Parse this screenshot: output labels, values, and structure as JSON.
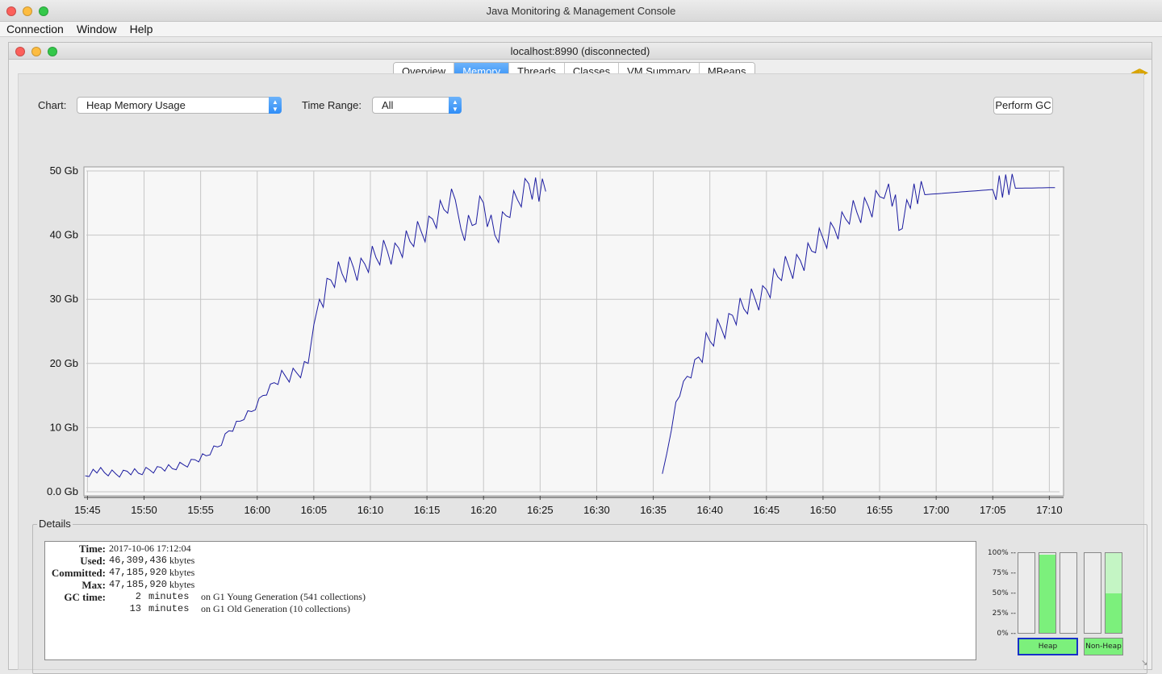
{
  "app_title": "Java Monitoring & Management Console",
  "menu": [
    "Connection",
    "Window",
    "Help"
  ],
  "window_title": "localhost:8990 (disconnected)",
  "tabs": [
    {
      "label": "Overview",
      "active": false
    },
    {
      "label": "Memory",
      "active": true
    },
    {
      "label": "Threads",
      "active": false
    },
    {
      "label": "Classes",
      "active": false
    },
    {
      "label": "VM Summary",
      "active": false
    },
    {
      "label": "MBeans",
      "active": false
    }
  ],
  "controls": {
    "chart_label": "Chart:",
    "chart_value": "Heap Memory Usage",
    "time_range_label": "Time Range:",
    "time_range_value": "All",
    "perform_gc": "Perform GC"
  },
  "chart_data": {
    "type": "line",
    "title": "",
    "xlabel": "",
    "ylabel": "",
    "y_unit": "Gb",
    "ylim": [
      0,
      50
    ],
    "y_ticks": [
      "0.0 Gb",
      "10 Gb",
      "20 Gb",
      "30 Gb",
      "40 Gb",
      "50 Gb"
    ],
    "x_ticks": [
      "15:45",
      "15:50",
      "15:55",
      "16:00",
      "16:05",
      "16:10",
      "16:15",
      "16:20",
      "16:25",
      "16:30",
      "16:35",
      "16:40",
      "16:45",
      "16:50",
      "16:55",
      "17:00",
      "17:05",
      "17:10"
    ],
    "grid": true,
    "line_color": "#1c1ca0",
    "series": [
      {
        "segments": [
          [
            [
              "15:44.8",
              2.5
            ],
            [
              "15:45.5",
              3.5
            ],
            [
              "15:46.5",
              3.0
            ],
            [
              "15:47.5",
              2.8
            ],
            [
              "15:48.5",
              3.2
            ],
            [
              "15:49.5",
              2.9
            ],
            [
              "15:50.5",
              3.4
            ],
            [
              "15:51.5",
              3.8
            ],
            [
              "15:52.5",
              3.6
            ],
            [
              "15:53.5",
              4.2
            ],
            [
              "15:54.5",
              5.0
            ],
            [
              "15:55.5",
              5.6
            ],
            [
              "15:56.5",
              7.0
            ],
            [
              "15:57.5",
              9.5
            ],
            [
              "15:58.5",
              11.0
            ],
            [
              "15:59.5",
              12.5
            ],
            [
              "16:00.5",
              15.0
            ],
            [
              "16:01.5",
              17.0
            ],
            [
              "16:02.5",
              18.0
            ],
            [
              "16:03.5",
              18.5
            ],
            [
              "16:04.5",
              20.0
            ],
            [
              "16:05.0",
              26.0
            ],
            [
              "16:05.5",
              30.0
            ],
            [
              "16:06.5",
              33.0
            ],
            [
              "16:07.5",
              34.0
            ],
            [
              "16:08.5",
              35.0
            ],
            [
              "16:09.5",
              35.5
            ],
            [
              "16:10.5",
              36.5
            ],
            [
              "16:11.5",
              37.5
            ],
            [
              "16:12.5",
              38.0
            ],
            [
              "16:13.5",
              39.0
            ],
            [
              "16:14.5",
              40.5
            ],
            [
              "16:15.5",
              42.5
            ],
            [
              "16:16.5",
              44.0
            ],
            [
              "16:17.5",
              45.5
            ],
            [
              "16:18.0",
              41.0
            ],
            [
              "16:19.0",
              41.5
            ],
            [
              "16:20.0",
              45.0
            ],
            [
              "16:21.0",
              40.0
            ],
            [
              "16:22.0",
              43.0
            ],
            [
              "16:23.0",
              45.5
            ],
            [
              "16:24.0",
              48.0
            ],
            [
              "16:25.5",
              46.8
            ]
          ]
        ]
      },
      {
        "segments": [
          [
            [
              "16:35.8",
              2.8
            ],
            [
              "16:36.2",
              6.0
            ],
            [
              "16:37.0",
              14.0
            ],
            [
              "16:38.0",
              18.0
            ],
            [
              "16:39.0",
              21.0
            ],
            [
              "16:40.0",
              23.5
            ],
            [
              "16:41.0",
              25.5
            ],
            [
              "16:42.0",
              27.5
            ],
            [
              "16:43.0",
              28.5
            ],
            [
              "16:44.0",
              30.0
            ],
            [
              "16:45.0",
              31.5
            ],
            [
              "16:46.0",
              33.5
            ],
            [
              "16:47.0",
              35.0
            ],
            [
              "16:48.0",
              36.0
            ],
            [
              "16:49.0",
              37.5
            ],
            [
              "16:50.0",
              39.5
            ],
            [
              "16:51.0",
              41.0
            ],
            [
              "16:52.0",
              42.5
            ],
            [
              "16:53.0",
              43.5
            ],
            [
              "16:54.0",
              44.5
            ],
            [
              "16:55.0",
              46.0
            ],
            [
              "16:55.8",
              48.0
            ],
            [
              "16:57.0",
              41.0
            ],
            [
              "16:57.4",
              45.5
            ],
            [
              "16:59.0",
              46.3
            ],
            [
              "17:02.0",
              46.7
            ],
            [
              "17:05.0",
              47.1
            ],
            [
              "17:07.0",
              47.3
            ],
            [
              "17:10.5",
              47.4
            ]
          ]
        ]
      }
    ]
  },
  "details": {
    "legend": "Details",
    "time_label": "Time:",
    "time_value": "2017-10-06 17:12:04",
    "used_label": "Used:",
    "used_value": "46,309,436",
    "committed_label": "Committed:",
    "committed_value": "47,185,920",
    "max_label": "Max:",
    "max_value": "47,185,920",
    "kbytes": "kbytes",
    "gc_label": "GC time:",
    "gc_young_value": "2",
    "gc_young_text": "minutes",
    "gc_young_desc": "on G1 Young Generation (541 collections)",
    "gc_old_value": "13",
    "gc_old_text": "minutes",
    "gc_old_desc": "on G1 Old Generation (10 collections)"
  },
  "pool_bars": {
    "percent_labels": [
      "100% --",
      "75% --",
      "50% --",
      "25% --",
      "0% --"
    ],
    "heap_label": "Heap",
    "nonheap_label": "Non-Heap",
    "bar_levels": [
      0.0,
      0.98,
      0.0,
      0.0,
      0.5
    ],
    "bar_committed": [
      0.0,
      0.98,
      0.0,
      0.0,
      1.0
    ]
  }
}
